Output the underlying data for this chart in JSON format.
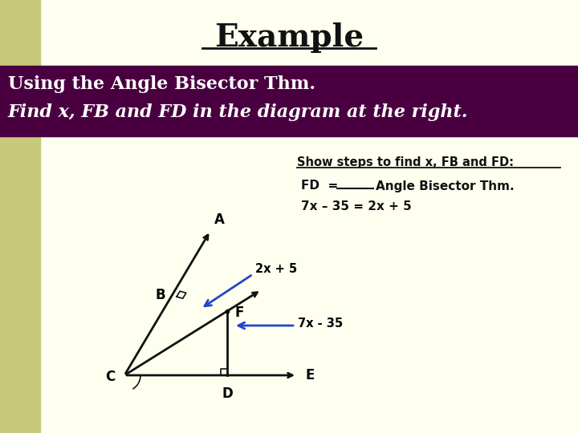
{
  "bg_color": "#FFFFF0",
  "left_bar_color": "#C8C87A",
  "title": "Example",
  "title_fontsize": 28,
  "header_bg": "#4A0040",
  "header_text_line1": "Using the Angle Bisector Thm.",
  "header_text_line2": "Find x, FB and FD in the diagram at the right.",
  "header_fontsize": 16,
  "steps_title": "Show steps to find x, FB and FD:",
  "step1_a": "FD  = ",
  "step1_b": "   Angle Bisector Thm.",
  "step2": "7x – 35 = 2x + 5",
  "label_A": "A",
  "label_B": "B",
  "label_C": "C",
  "label_D": "D",
  "label_E": "E",
  "label_F": "F",
  "label_2x5": "2x + 5",
  "label_7x35": "7x - 35",
  "text_color": "#111111",
  "arrow_color": "#2244CC",
  "line_color": "#111111"
}
